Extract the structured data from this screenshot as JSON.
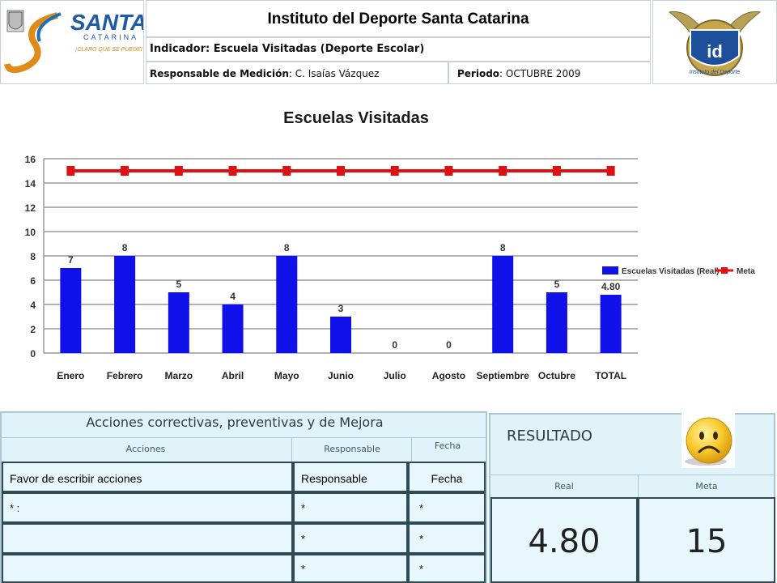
{
  "header": {
    "org_title": "Instituto del Deporte Santa Catarina",
    "indicator_label": "Indicador: Escuela Visitadas (Deporte Escolar)",
    "responsable_key": "Responsable de Medición",
    "responsable_value": "C. Isaías Vázquez",
    "periodo_key": "Periodo",
    "periodo_value": "OCTUBRE 2009",
    "logo_left_text": "SANTA",
    "logo_left_sub": "CATARINA",
    "logo_left_slogan": "¡CLARO QUE SE PUEDE!",
    "logo_right_text": "id",
    "logo_right_sub": "Instituto del Deporte"
  },
  "chart_data": {
    "type": "bar",
    "title": "Escuelas Visitadas",
    "categories": [
      "Enero",
      "Febrero",
      "Marzo",
      "Abril",
      "Mayo",
      "Junio",
      "Julio",
      "Agosto",
      "Septiembre",
      "Octubre",
      "TOTAL"
    ],
    "series": [
      {
        "name": "Escuelas Visitadas (Real)",
        "type": "bar",
        "color": "#1010e8",
        "values": [
          7,
          8,
          5,
          4,
          8,
          3,
          0,
          0,
          8,
          5,
          4.8
        ],
        "labels": [
          "7",
          "8",
          "5",
          "4",
          "8",
          "3",
          "0",
          "0",
          "8",
          "5",
          "4.80"
        ]
      },
      {
        "name": "Meta",
        "type": "line",
        "color": "#e01010",
        "values": [
          15,
          15,
          15,
          15,
          15,
          15,
          15,
          15,
          15,
          15,
          15
        ]
      }
    ],
    "ylim": [
      0,
      16
    ],
    "yticks": [
      0,
      2,
      4,
      6,
      8,
      10,
      12,
      14,
      16
    ],
    "grid": true,
    "legend_position": "right"
  },
  "actions": {
    "title": "Acciones correctivas, preventivas y de Mejora",
    "col_acciones": "Acciones",
    "col_responsable": "Responsable",
    "col_fecha": "Fecha",
    "rows": [
      {
        "accion": "Favor de escribir acciones",
        "responsable": "Responsable",
        "fecha": "Fecha"
      },
      {
        "accion": "* :",
        "responsable": "*",
        "fecha": "*"
      },
      {
        "accion": "",
        "responsable": "*",
        "fecha": "*"
      },
      {
        "accion": "",
        "responsable": "*",
        "fecha": "*"
      }
    ]
  },
  "result": {
    "title": "RESULTADO",
    "face_icon": "sad-face-icon",
    "real_label": "Real",
    "meta_label": "Meta",
    "real_value": "4.80",
    "meta_value": "15"
  },
  "colors": {
    "bar": "#1010e8",
    "meta_line": "#e01010",
    "panel_bg": "#dff3f9"
  }
}
